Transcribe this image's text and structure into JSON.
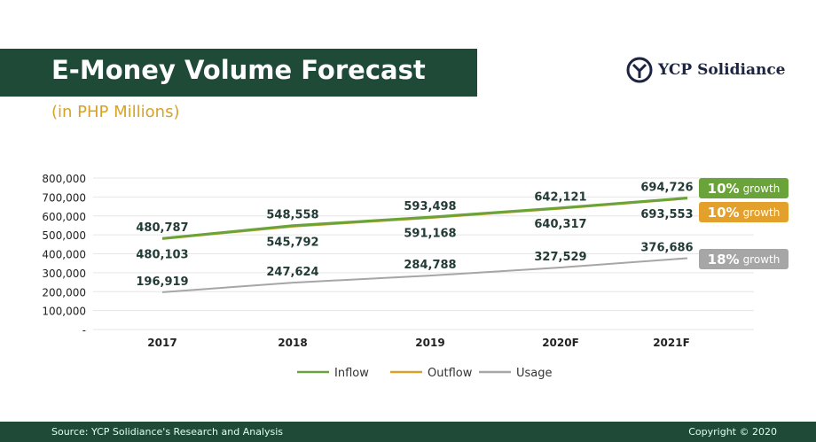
{
  "header": {
    "title": "E-Money Volume Forecast",
    "subtitle": "(in PHP Millions)",
    "logo": "YCP Solidiance"
  },
  "footer": {
    "source": "Source: YCP Solidiance's Research and Analysis",
    "copyright": "Copyright © 2020"
  },
  "badges": [
    {
      "pct": "10%",
      "word": "growth",
      "color": "#6aa339"
    },
    {
      "pct": "10%",
      "word": "growth",
      "color": "#e3a02c"
    },
    {
      "pct": "18%",
      "word": "growth",
      "color": "#a6a6a6"
    }
  ],
  "chart_data": {
    "type": "line",
    "categories": [
      "2017",
      "2018",
      "2019",
      "2020F",
      "2021F"
    ],
    "y_tick_labels": [
      "-",
      "100,000",
      "200,000",
      "300,000",
      "400,000",
      "500,000",
      "600,000",
      "700,000",
      "800,000"
    ],
    "ylim": [
      0,
      800000
    ],
    "grid": true,
    "legend": "bottom",
    "series": [
      {
        "name": "Inflow",
        "color": "#6aa339",
        "values": [
          480787,
          548558,
          593498,
          642121,
          694726
        ],
        "labels": [
          "480,787",
          "548,558",
          "593,498",
          "642,121",
          "694,726"
        ]
      },
      {
        "name": "Outflow",
        "color": "#d6a228",
        "values": [
          480103,
          545792,
          591168,
          640317,
          693553
        ],
        "labels": [
          "480,103",
          "545,792",
          "591,168",
          "640,317",
          "693,553"
        ]
      },
      {
        "name": "Usage",
        "color": "#a6a6a6",
        "values": [
          196919,
          247624,
          284788,
          327529,
          376686
        ],
        "labels": [
          "196,919",
          "247,624",
          "284,788",
          "327,529",
          "376,686"
        ]
      }
    ]
  }
}
